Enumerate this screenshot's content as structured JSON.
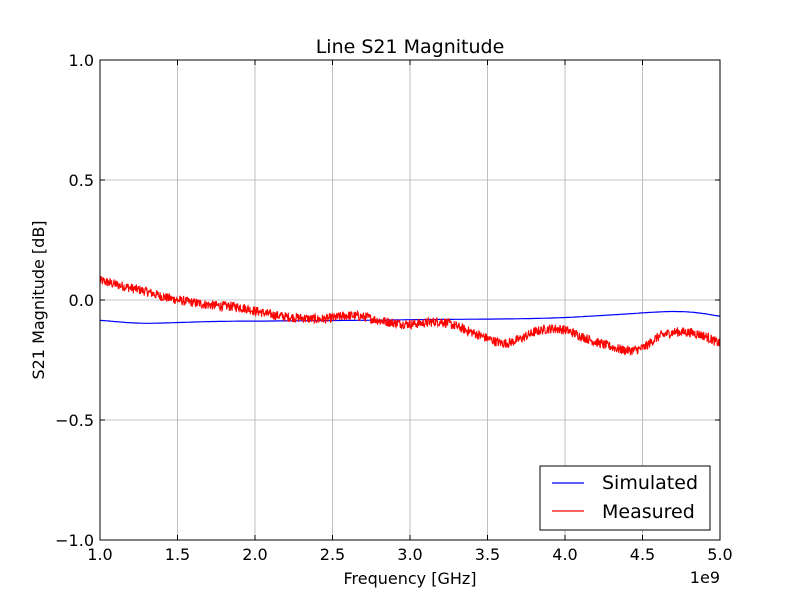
{
  "chart_data": {
    "type": "line",
    "title": "Line S21 Magnitude",
    "xlabel": "Frequency [GHz]",
    "ylabel": "S21 Magnitude [dB]",
    "x_offset_text": "1e9",
    "xlim": [
      1.0,
      5.0
    ],
    "ylim": [
      -1.0,
      1.0
    ],
    "x_ticks": [
      1.0,
      1.5,
      2.0,
      2.5,
      3.0,
      3.5,
      4.0,
      4.5,
      5.0
    ],
    "x_tick_labels": [
      "1.0",
      "1.5",
      "2.0",
      "2.5",
      "3.0",
      "3.5",
      "4.0",
      "4.5",
      "5.0"
    ],
    "y_ticks": [
      -1.0,
      -0.5,
      0.0,
      0.5,
      1.0
    ],
    "y_tick_labels": [
      "−1.0",
      "−0.5",
      "0.0",
      "0.5",
      "1.0"
    ],
    "grid": true,
    "legend_position": "bottom-right",
    "series": [
      {
        "name": "Simulated",
        "color": "#0000ff",
        "x": [
          1.0,
          1.1,
          1.2,
          1.3,
          1.4,
          1.5,
          1.6,
          1.7,
          1.8,
          1.9,
          2.0,
          2.2,
          2.4,
          2.6,
          2.8,
          3.0,
          3.2,
          3.4,
          3.6,
          3.8,
          4.0,
          4.2,
          4.4,
          4.6,
          4.7,
          4.8,
          4.9,
          5.0
        ],
        "y": [
          -0.085,
          -0.09,
          -0.095,
          -0.097,
          -0.096,
          -0.094,
          -0.092,
          -0.09,
          -0.089,
          -0.088,
          -0.088,
          -0.087,
          -0.086,
          -0.085,
          -0.084,
          -0.082,
          -0.081,
          -0.08,
          -0.079,
          -0.077,
          -0.073,
          -0.066,
          -0.058,
          -0.05,
          -0.048,
          -0.05,
          -0.057,
          -0.067
        ]
      },
      {
        "name": "Measured",
        "color": "#ff0000",
        "x": [
          1.0,
          1.1,
          1.2,
          1.3,
          1.4,
          1.5,
          1.6,
          1.7,
          1.8,
          1.9,
          2.0,
          2.1,
          2.2,
          2.3,
          2.4,
          2.5,
          2.6,
          2.7,
          2.8,
          2.9,
          3.0,
          3.1,
          3.2,
          3.3,
          3.4,
          3.5,
          3.6,
          3.7,
          3.8,
          3.9,
          4.0,
          4.1,
          4.2,
          4.3,
          4.4,
          4.5,
          4.6,
          4.7,
          4.8,
          4.9,
          5.0
        ],
        "y": [
          0.08,
          0.065,
          0.05,
          0.035,
          0.015,
          0.0,
          -0.01,
          -0.02,
          -0.025,
          -0.03,
          -0.045,
          -0.06,
          -0.07,
          -0.075,
          -0.08,
          -0.075,
          -0.065,
          -0.07,
          -0.085,
          -0.095,
          -0.1,
          -0.095,
          -0.09,
          -0.11,
          -0.135,
          -0.16,
          -0.18,
          -0.165,
          -0.135,
          -0.12,
          -0.125,
          -0.15,
          -0.175,
          -0.195,
          -0.21,
          -0.2,
          -0.155,
          -0.135,
          -0.135,
          -0.15,
          -0.18
        ]
      }
    ]
  }
}
